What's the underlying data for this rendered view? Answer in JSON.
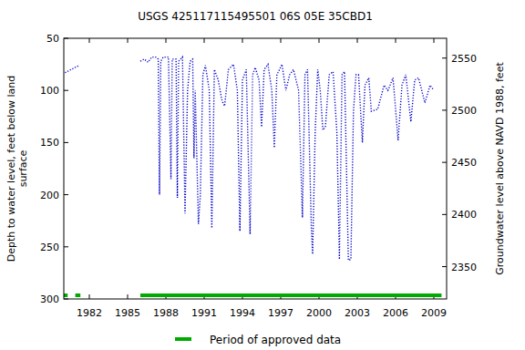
{
  "chart_data": {
    "type": "line",
    "title": "USGS 425117115495501 06S 05E 35CBD1",
    "ylabel": [
      "Depth to water level, feet below land",
      "surface"
    ],
    "y2label": "Groundwater level above NAVD 1988, feet",
    "xlim": [
      1980,
      2010
    ],
    "xticks": [
      1982,
      1985,
      1988,
      1991,
      1994,
      1997,
      2000,
      2003,
      2006,
      2009
    ],
    "ylim": [
      300,
      50
    ],
    "yticks": [
      50,
      100,
      150,
      200,
      250,
      300
    ],
    "y2lim": [
      2319,
      2569
    ],
    "y2ticks": [
      2350,
      2400,
      2450,
      2500,
      2550
    ],
    "series": [
      {
        "name": "Depth to water level",
        "color": "#0000cc",
        "line_style": "dotted",
        "x": [
          1980.1,
          1981.2,
          null,
          1986.0,
          1986.3,
          1986.6,
          1986.9,
          1987.2,
          1987.4,
          1987.5,
          1987.6,
          1987.8,
          1988.2,
          1988.4,
          1988.5,
          1988.8,
          1988.9,
          1989.0,
          1989.3,
          1989.5,
          1989.7,
          1989.9,
          1990.1,
          1990.2,
          1990.3,
          1990.55,
          1990.7,
          1990.9,
          1991.1,
          1991.4,
          1991.6,
          1991.8,
          1992.1,
          1992.4,
          1992.6,
          1992.9,
          1993.3,
          1993.6,
          1993.8,
          1994.0,
          1994.3,
          1994.6,
          1994.8,
          1995.0,
          1995.3,
          1995.5,
          1995.7,
          1996.0,
          1996.3,
          1996.5,
          1996.7,
          1997.1,
          1997.4,
          1997.7,
          1998.0,
          1998.4,
          1998.7,
          1998.9,
          1999.1,
          1999.4,
          1999.5,
          1999.7,
          1999.9,
          2000.1,
          2000.3,
          2000.5,
          2000.8,
          2001.1,
          2001.4,
          2001.6,
          2001.8,
          2002.0,
          2002.3,
          2002.5,
          2002.7,
          2002.9,
          2003.1,
          2003.4,
          2003.6,
          2003.9,
          2004.1,
          2004.6,
          2005.1,
          2005.4,
          2005.8,
          2006.2,
          2006.5,
          2006.8,
          2007.2,
          2007.5,
          2007.8,
          2008.3,
          2008.7,
          2009.0
        ],
        "values": [
          83,
          76,
          null,
          72,
          70,
          73,
          68,
          68,
          70,
          200,
          72,
          68,
          68,
          185,
          70,
          70,
          203,
          72,
          68,
          218,
          100,
          72,
          70,
          165,
          100,
          228,
          200,
          85,
          76,
          100,
          232,
          80,
          90,
          110,
          115,
          80,
          75,
          100,
          235,
          90,
          80,
          238,
          85,
          78,
          90,
          135,
          80,
          75,
          100,
          155,
          85,
          75,
          100,
          85,
          80,
          100,
          222,
          85,
          80,
          232,
          257,
          140,
          80,
          100,
          138,
          135,
          85,
          82,
          140,
          262,
          85,
          82,
          263,
          262,
          120,
          85,
          85,
          150,
          95,
          88,
          120,
          118,
          95,
          100,
          88,
          148,
          95,
          85,
          130,
          90,
          88,
          112,
          95,
          100
        ]
      }
    ],
    "approved_periods": {
      "name": "Period of approved data",
      "color": "#00aa00",
      "ranges": [
        [
          1980.0,
          1980.3
        ],
        [
          1980.9,
          1981.3
        ],
        [
          1986.0,
          2009.6
        ]
      ]
    }
  }
}
